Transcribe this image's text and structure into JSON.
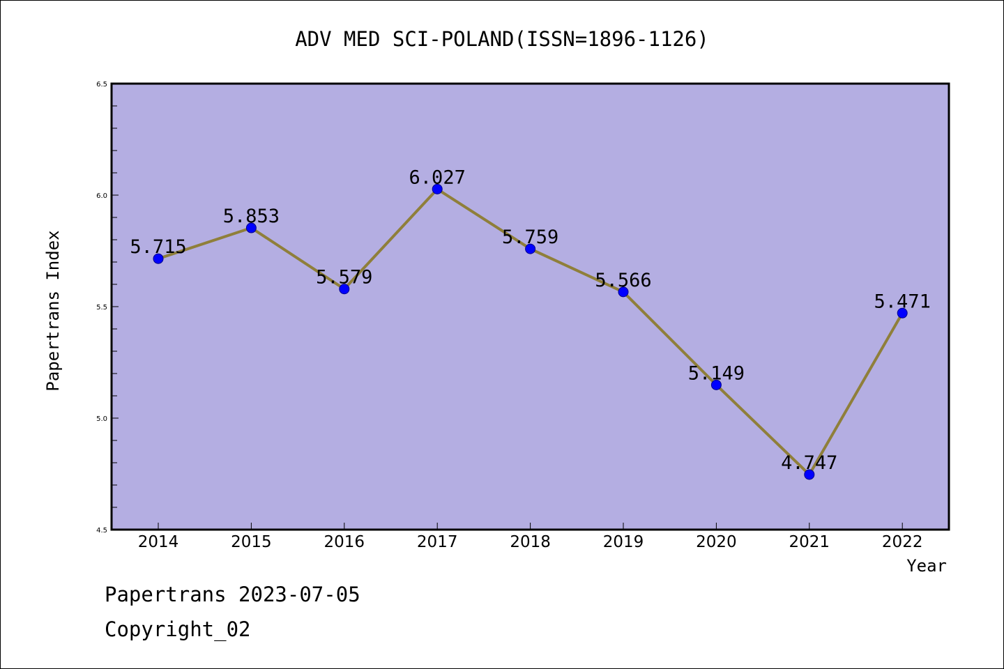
{
  "chart_data": {
    "type": "line",
    "title": "ADV MED SCI-POLAND(ISSN=1896-1126)",
    "xlabel": "Year",
    "ylabel": "Papertrans Index",
    "categories": [
      "2014",
      "2015",
      "2016",
      "2017",
      "2018",
      "2019",
      "2020",
      "2021",
      "2022"
    ],
    "series": [
      {
        "values": [
          5.715,
          5.853,
          5.579,
          6.027,
          5.759,
          5.566,
          5.149,
          4.747,
          5.471
        ],
        "data_labels": [
          "5.715",
          "5.853",
          "5.579",
          "6.027",
          "5.759",
          "5.566",
          "5.149",
          "4.747",
          "5.471"
        ]
      }
    ],
    "ylim": [
      4.5,
      6.5
    ],
    "yticks": [
      "4.5",
      "5.0",
      "5.5",
      "6.0",
      "6.5"
    ],
    "grid": false,
    "colors": {
      "plot_background": "#b4aee2",
      "line": "#8f7f3a",
      "marker": "#0000ff"
    }
  },
  "footer": {
    "line1": "Papertrans 2023-07-05",
    "line2": "Copyright_02"
  }
}
